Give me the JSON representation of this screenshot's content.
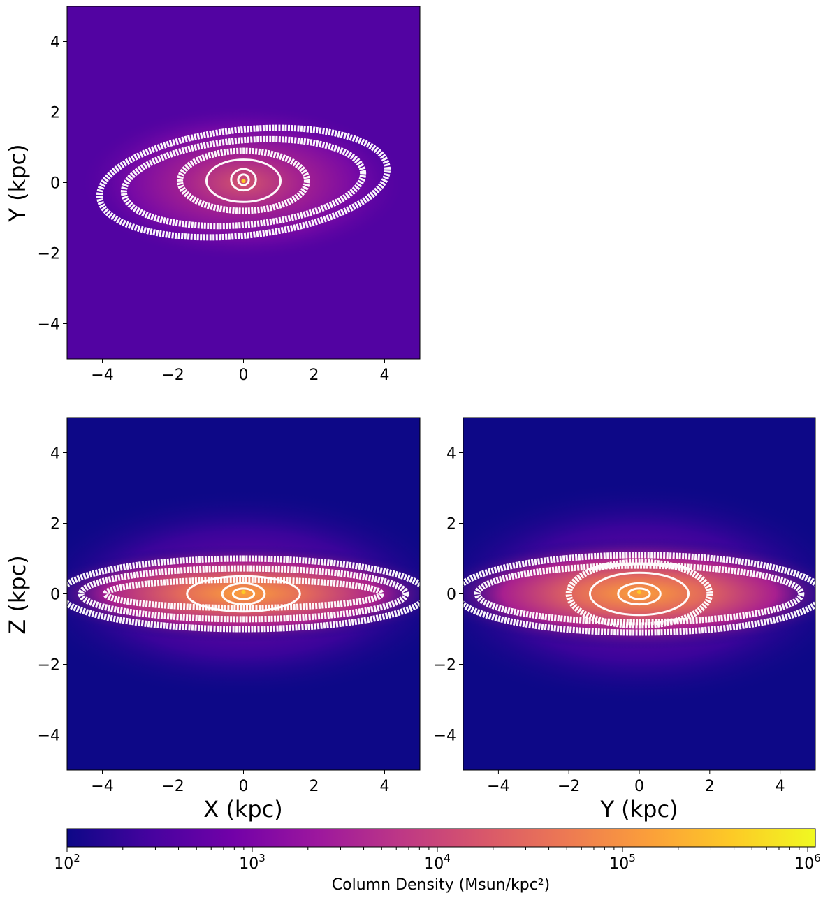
{
  "chart_data": [
    {
      "type": "heatmap",
      "panel": "top-left",
      "projection": "face-on (X-Y)",
      "xlabel": "",
      "ylabel": "Y (kpc)",
      "xlim": [
        -5,
        5
      ],
      "ylim": [
        -5,
        5
      ],
      "xticks": [
        -4,
        -2,
        0,
        2,
        4
      ],
      "yticks": [
        -4,
        -2,
        0,
        2,
        4
      ],
      "xtick_labels": [
        "−4",
        "−2",
        "0",
        "2",
        "4"
      ],
      "ytick_labels": [
        "−4",
        "−2",
        "0",
        "2",
        "4"
      ],
      "background_density": 400,
      "contours": [
        {
          "cx": 0,
          "cy": 0,
          "rx": 4.1,
          "ry": 1.5,
          "rot": -6
        },
        {
          "cx": 0,
          "cy": 0,
          "rx": 3.4,
          "ry": 1.2,
          "rot": -5
        },
        {
          "cx": 0,
          "cy": 0.05,
          "rx": 1.8,
          "ry": 0.85,
          "rot": 0
        },
        {
          "cx": 0,
          "cy": 0.05,
          "rx": 1.05,
          "ry": 0.6,
          "rot": 0
        },
        {
          "cx": 0,
          "cy": 0.08,
          "rx": 0.35,
          "ry": 0.3,
          "rot": 0
        },
        {
          "cx": 0,
          "cy": 0.08,
          "rx": 0.15,
          "ry": 0.15,
          "rot": 0
        }
      ]
    },
    {
      "type": "heatmap",
      "panel": "bottom-left",
      "projection": "edge-on (X-Z)",
      "xlabel": "X (kpc)",
      "ylabel": "Z (kpc)",
      "xlim": [
        -5,
        5
      ],
      "ylim": [
        -5,
        5
      ],
      "xticks": [
        -4,
        -2,
        0,
        2,
        4
      ],
      "yticks": [
        -4,
        -2,
        0,
        2,
        4
      ],
      "xtick_labels": [
        "−4",
        "−2",
        "0",
        "2",
        "4"
      ],
      "ytick_labels": [
        "−4",
        "−2",
        "0",
        "2",
        "4"
      ],
      "background_density": 100,
      "contours": [
        {
          "cx": 0,
          "cy": 0,
          "rx": 5.2,
          "ry": 1.0,
          "rot": 0
        },
        {
          "cx": 0,
          "cy": 0,
          "rx": 4.6,
          "ry": 0.72,
          "rot": 0
        },
        {
          "cx": 0,
          "cy": 0,
          "rx": 3.9,
          "ry": 0.4,
          "rot": 0
        },
        {
          "cx": 0,
          "cy": 0,
          "rx": 1.6,
          "ry": 0.5,
          "rot": 0
        },
        {
          "cx": 0,
          "cy": 0,
          "rx": 0.6,
          "ry": 0.3,
          "rot": 0
        },
        {
          "cx": 0,
          "cy": 0,
          "rx": 0.3,
          "ry": 0.15,
          "rot": 0
        }
      ]
    },
    {
      "type": "heatmap",
      "panel": "bottom-right",
      "projection": "edge-on (Y-Z)",
      "xlabel": "Y (kpc)",
      "ylabel": "",
      "xlim": [
        -5,
        5
      ],
      "ylim": [
        -5,
        5
      ],
      "xticks": [
        -4,
        -2,
        0,
        2,
        4
      ],
      "yticks": [
        -4,
        -2,
        0,
        2,
        4
      ],
      "xtick_labels": [
        "−4",
        "−2",
        "0",
        "2",
        "4"
      ],
      "ytick_labels": [
        "−4",
        "−2",
        "0",
        "2",
        "4"
      ],
      "background_density": 100,
      "contours": [
        {
          "cx": 0,
          "cy": 0,
          "rx": 5.2,
          "ry": 1.1,
          "rot": 0
        },
        {
          "cx": 0,
          "cy": 0,
          "rx": 4.6,
          "ry": 0.8,
          "rot": 0
        },
        {
          "cx": 0,
          "cy": 0,
          "rx": 2.0,
          "ry": 0.9,
          "rot": 0
        },
        {
          "cx": 0,
          "cy": 0,
          "rx": 1.4,
          "ry": 0.6,
          "rot": 0
        },
        {
          "cx": 0,
          "cy": 0,
          "rx": 0.6,
          "ry": 0.3,
          "rot": 0
        },
        {
          "cx": 0,
          "cy": 0,
          "rx": 0.3,
          "ry": 0.15,
          "rot": 0
        }
      ]
    }
  ],
  "colorbar": {
    "label": "Column Density (Msun/kpc²)",
    "scale": "log",
    "range": [
      100,
      1100000
    ],
    "major_ticks": [
      100,
      1000,
      10000,
      100000,
      1000000
    ],
    "tick_base": "10",
    "tick_exponents": [
      "2",
      "3",
      "4",
      "5",
      "6"
    ],
    "colormap": "plasma",
    "colormap_stops": [
      "#0d0887",
      "#46039f",
      "#7201a8",
      "#9c179e",
      "#bd3786",
      "#d8576b",
      "#ed7953",
      "#fb9f3a",
      "#fdca26",
      "#f0f921"
    ]
  }
}
